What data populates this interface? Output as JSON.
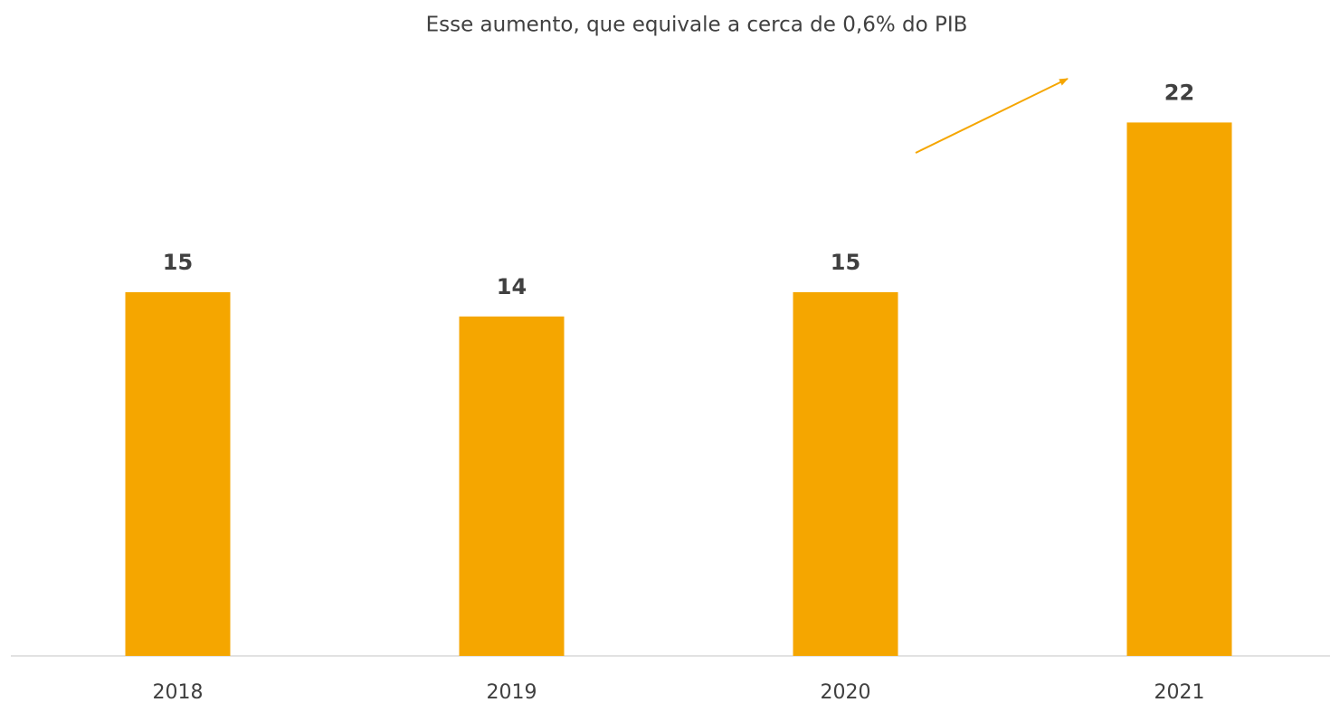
{
  "chart_data": {
    "type": "bar",
    "annotation": "Esse aumento, que equivale a cerca de 0,6% do PIB",
    "categories": [
      "2018",
      "2019",
      "2020",
      "2021"
    ],
    "values": [
      15,
      14,
      15,
      22
    ],
    "color": "#f5a600",
    "ylim": [
      0,
      25
    ]
  }
}
